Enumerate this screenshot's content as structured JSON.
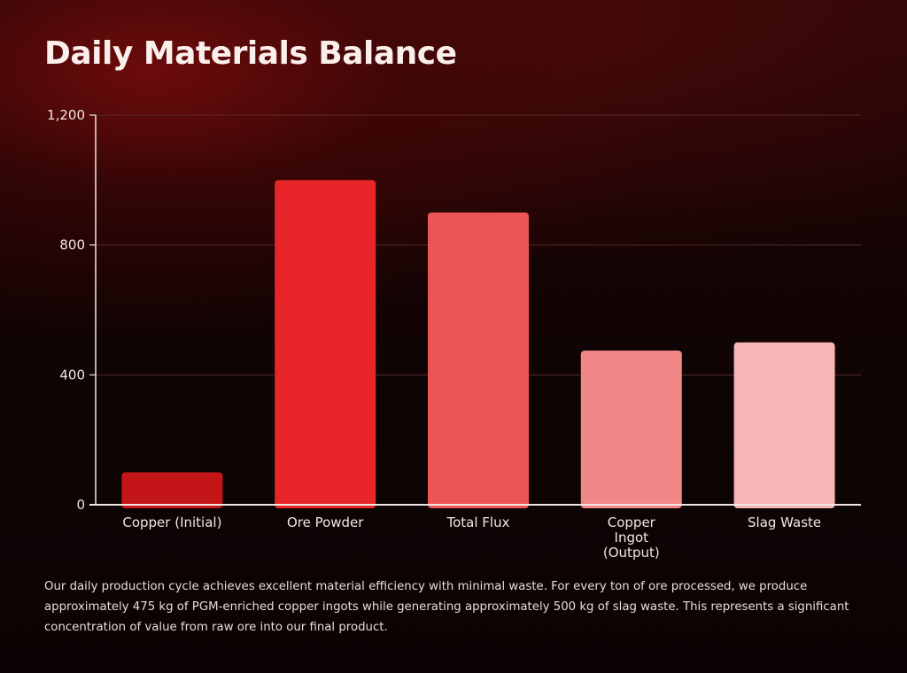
{
  "title": "Daily Materials Balance",
  "caption": "Our daily production cycle achieves excellent material efficiency with minimal waste. For every ton of ore processed, we produce approximately 475 kg of PGM-enriched copper ingots while generating approximately 500 kg of slag waste. This represents a significant concentration of value from raw ore into our final product.",
  "colors": {
    "bars": [
      "#c41518",
      "#e8262a",
      "#ec5456",
      "#f28787",
      "#f6b6b6"
    ],
    "axis": "#f2e6e3",
    "grid": "#5a2a2a",
    "text": "#f2e6e3"
  },
  "chart_data": {
    "type": "bar",
    "title": "Daily Materials Balance",
    "categories": [
      "Copper (Initial)",
      "Ore Powder",
      "Total Flux",
      "Copper Ingot (Output)",
      "Slag Waste"
    ],
    "category_lines": [
      [
        "Copper (Initial)"
      ],
      [
        "Ore Powder"
      ],
      [
        "Total Flux"
      ],
      [
        "Copper",
        "Ingot",
        "(Output)"
      ],
      [
        "Slag Waste"
      ]
    ],
    "values": [
      100,
      1000,
      900,
      475,
      500
    ],
    "ylim": [
      0,
      1200
    ],
    "yticks": [
      0,
      400,
      800,
      1200
    ],
    "ytick_labels": [
      "0",
      "400",
      "800",
      "1,200"
    ],
    "xlabel": "",
    "ylabel": "",
    "grid": true,
    "legend": "none"
  }
}
